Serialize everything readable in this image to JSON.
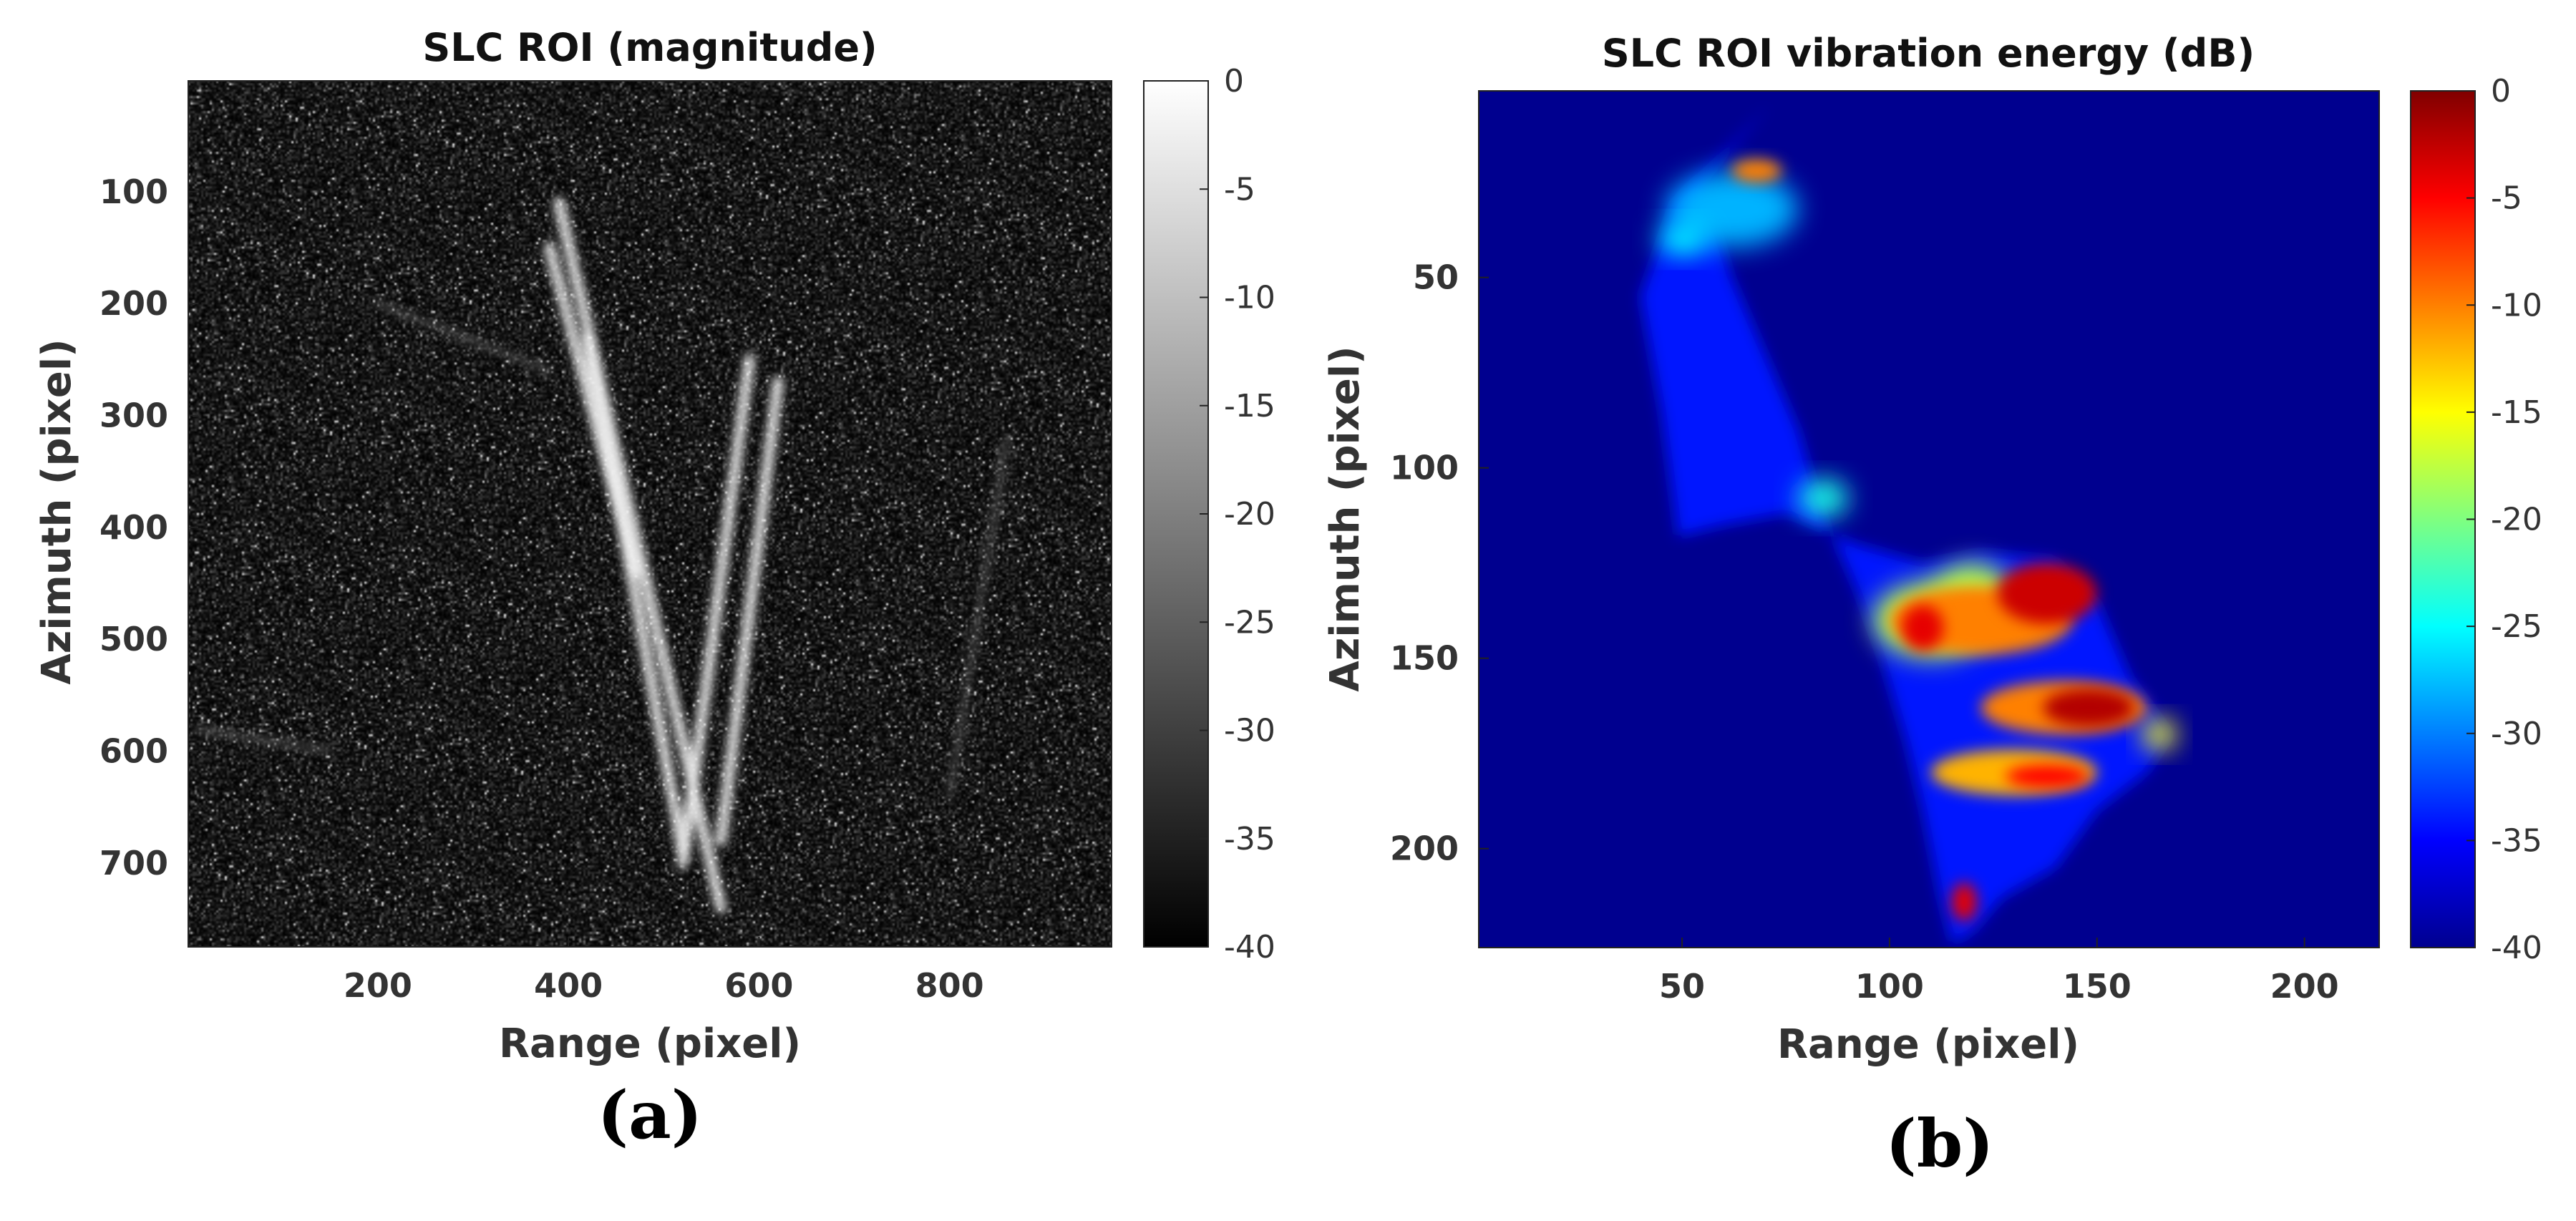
{
  "chart_data": [
    {
      "panel_label": "(a)",
      "type": "heatmap",
      "title": "SLC ROI (magnitude)",
      "xlabel": "Range (pixel)",
      "ylabel": "Azimuth (pixel)",
      "xlim": [
        1,
        970
      ],
      "ylim": [
        775,
        1
      ],
      "y_reversed": true,
      "xticks": [
        200,
        400,
        600,
        800
      ],
      "yticks": [
        100,
        200,
        300,
        400,
        500,
        600,
        700
      ],
      "colormap": "gray",
      "colorbar": {
        "range": [
          -40,
          0
        ],
        "ticks": [
          0,
          -5,
          -10,
          -15,
          -20,
          -25,
          -30,
          -35,
          -40
        ]
      },
      "features": [
        {
          "kind": "bright streak",
          "from": [
            390,
            110
          ],
          "to": [
            560,
            740
          ]
        },
        {
          "kind": "bright streak",
          "from": [
            380,
            150
          ],
          "to": [
            470,
            440
          ]
        },
        {
          "kind": "bright streak",
          "from": [
            420,
            230
          ],
          "to": [
            520,
            690
          ]
        },
        {
          "kind": "bright streak",
          "from": [
            590,
            250
          ],
          "to": [
            520,
            700
          ]
        },
        {
          "kind": "bright streak",
          "from": [
            620,
            270
          ],
          "to": [
            560,
            680
          ]
        },
        {
          "kind": "faint streak",
          "from": [
            860,
            320
          ],
          "to": [
            800,
            640
          ]
        },
        {
          "kind": "faint streak",
          "from": [
            200,
            200
          ],
          "to": [
            380,
            260
          ]
        },
        {
          "kind": "faint streak",
          "from": [
            10,
            580
          ],
          "to": [
            150,
            600
          ]
        }
      ]
    },
    {
      "panel_label": "(b)",
      "type": "heatmap",
      "title": "SLC ROI vibration energy (dB)",
      "xlabel": "Range (pixel)",
      "ylabel": "Azimuth (pixel)",
      "xlim": [
        1,
        218
      ],
      "ylim": [
        226,
        1
      ],
      "y_reversed": true,
      "xticks": [
        50,
        100,
        150,
        200
      ],
      "yticks": [
        50,
        100,
        150,
        200
      ],
      "colormap": "jet",
      "colorbar": {
        "range": [
          -40,
          0
        ],
        "ticks": [
          0,
          -5,
          -10,
          -15,
          -20,
          -25,
          -30,
          -35,
          -40
        ]
      },
      "background_db": -40,
      "region_outline_db": -34,
      "region_outline": [
        [
          71,
          5
        ],
        [
          60,
          17
        ],
        [
          48,
          30
        ],
        [
          40,
          55
        ],
        [
          45,
          85
        ],
        [
          49,
          118
        ],
        [
          60,
          115
        ],
        [
          75,
          112
        ],
        [
          92,
          120
        ],
        [
          108,
          125
        ],
        [
          122,
          122
        ],
        [
          140,
          124
        ],
        [
          150,
          135
        ],
        [
          158,
          155
        ],
        [
          168,
          170
        ],
        [
          162,
          180
        ],
        [
          150,
          190
        ],
        [
          140,
          205
        ],
        [
          127,
          213
        ],
        [
          120,
          222
        ],
        [
          115,
          225
        ],
        [
          112,
          212
        ],
        [
          108,
          190
        ],
        [
          104,
          172
        ],
        [
          98,
          150
        ],
        [
          92,
          132
        ],
        [
          84,
          112
        ],
        [
          78,
          90
        ],
        [
          70,
          70
        ],
        [
          62,
          50
        ],
        [
          55,
          25
        ]
      ],
      "blobs": [
        {
          "cx": 68,
          "cy": 22,
          "rx": 6,
          "ry": 3,
          "db": -10
        },
        {
          "cx": 62,
          "cy": 32,
          "rx": 16,
          "ry": 10,
          "db": -28
        },
        {
          "cx": 50,
          "cy": 40,
          "rx": 6,
          "ry": 4,
          "db": -25
        },
        {
          "cx": 84,
          "cy": 108,
          "rx": 6,
          "ry": 5,
          "db": -24
        },
        {
          "cx": 110,
          "cy": 140,
          "rx": 14,
          "ry": 10,
          "db": -18
        },
        {
          "cx": 120,
          "cy": 135,
          "rx": 10,
          "ry": 10,
          "db": -18
        },
        {
          "cx": 122,
          "cy": 140,
          "rx": 22,
          "ry": 9,
          "db": -10
        },
        {
          "cx": 138,
          "cy": 133,
          "rx": 12,
          "ry": 8,
          "db": -3
        },
        {
          "cx": 108,
          "cy": 142,
          "rx": 5,
          "ry": 6,
          "db": -4
        },
        {
          "cx": 142,
          "cy": 163,
          "rx": 20,
          "ry": 7,
          "db": -10
        },
        {
          "cx": 148,
          "cy": 163,
          "rx": 11,
          "ry": 5,
          "db": -2
        },
        {
          "cx": 165,
          "cy": 170,
          "rx": 4,
          "ry": 4,
          "db": -15
        },
        {
          "cx": 130,
          "cy": 180,
          "rx": 20,
          "ry": 6,
          "db": -12
        },
        {
          "cx": 138,
          "cy": 181,
          "rx": 10,
          "ry": 3,
          "db": -5
        },
        {
          "cx": 118,
          "cy": 214,
          "rx": 3,
          "ry": 5,
          "db": -4
        }
      ]
    }
  ]
}
